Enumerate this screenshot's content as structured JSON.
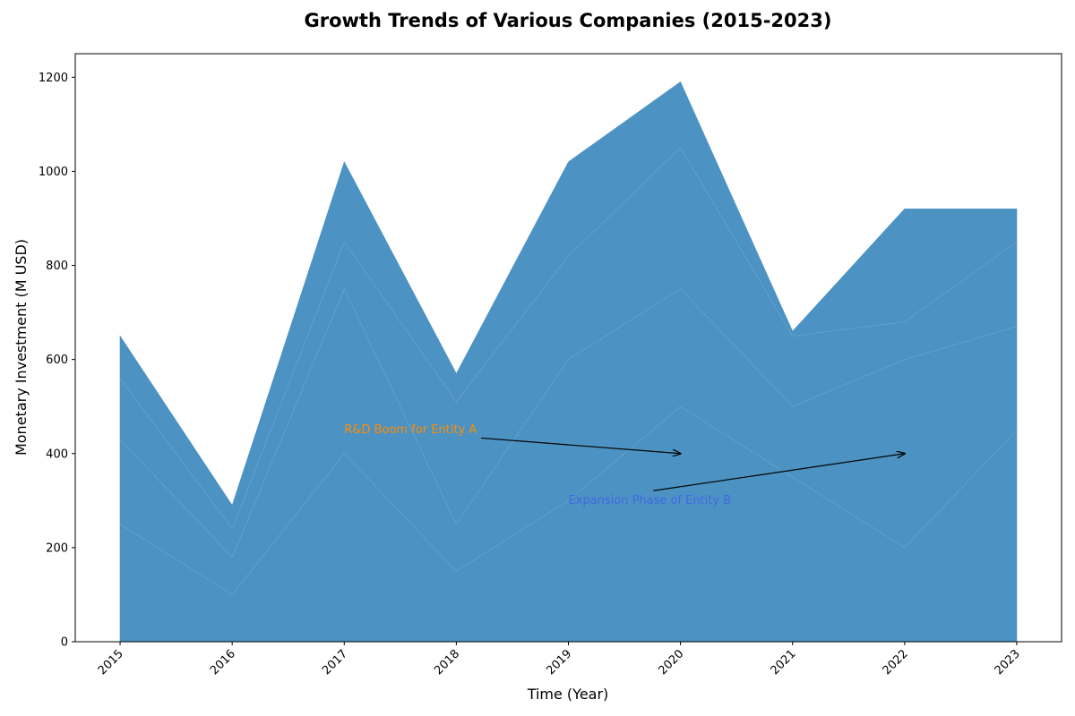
{
  "chart_data": {
    "type": "area",
    "stacked": true,
    "title": "Growth Trends of Various Companies (2015-2023)",
    "xlabel": "Time (Year)",
    "ylabel": "Monetary Investment (M USD)",
    "x": [
      2015,
      2016,
      2017,
      2018,
      2019,
      2020,
      2021,
      2022,
      2023
    ],
    "xlim": [
      2014.6,
      2023.4
    ],
    "ylim": [
      0,
      1250
    ],
    "yticks": [
      0,
      200,
      400,
      600,
      800,
      1000,
      1200
    ],
    "grid": false,
    "legend": "none",
    "fill_color": "#4c92c3",
    "boundary_color": "#6aa3cf",
    "series": [
      {
        "values": [
          250,
          100,
          400,
          150,
          300,
          500,
          350,
          200,
          450
        ]
      },
      {
        "values": [
          180,
          80,
          350,
          100,
          300,
          250,
          150,
          400,
          220
        ]
      },
      {
        "values": [
          130,
          60,
          100,
          260,
          220,
          300,
          150,
          80,
          180
        ]
      },
      {
        "values": [
          90,
          50,
          170,
          60,
          200,
          140,
          10,
          240,
          70
        ]
      }
    ],
    "annotations": [
      {
        "text": "R&D Boom for Entity A",
        "x": 2017,
        "y": 452,
        "arrow_to": {
          "x": 2020,
          "y": 400
        },
        "color": "#ff8c00"
      },
      {
        "text": "Expansion Phase of Entity B",
        "x": 2019,
        "y": 302,
        "arrow_to": {
          "x": 2022,
          "y": 400
        },
        "color": "#4169e1"
      }
    ]
  }
}
